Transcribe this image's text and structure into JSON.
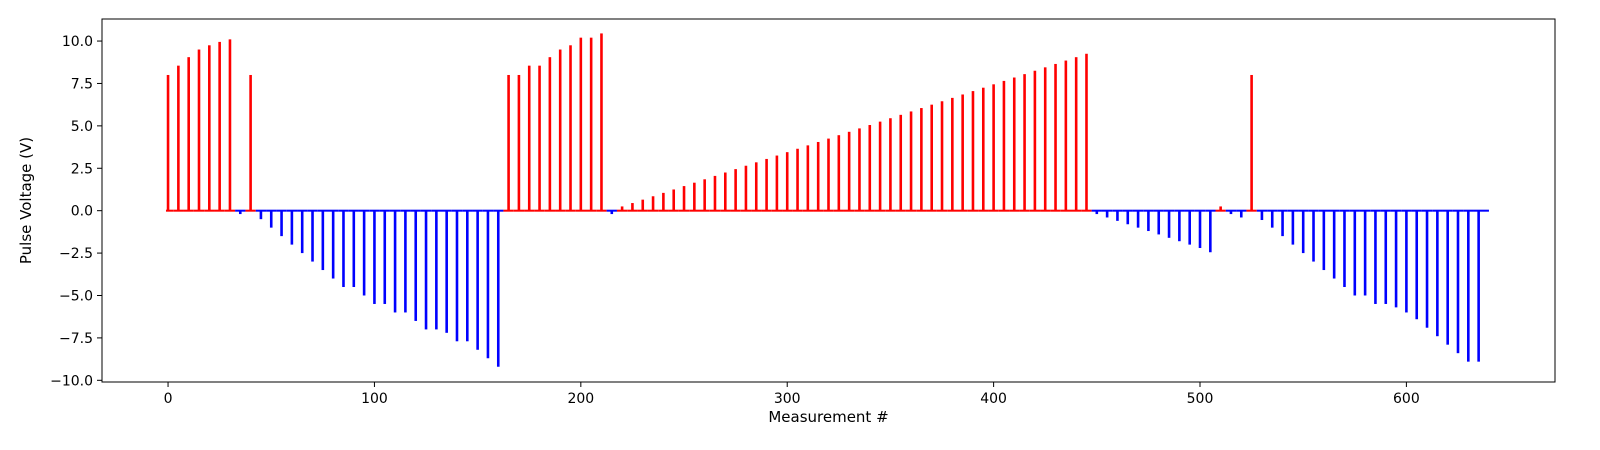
{
  "chart_data": {
    "type": "bar",
    "xlabel": "Measurement #",
    "ylabel": "Pulse Voltage (V)",
    "xlim": [
      -32,
      672
    ],
    "ylim": [
      -10.1,
      11.3
    ],
    "xticks": [
      0,
      100,
      200,
      300,
      400,
      500,
      600
    ],
    "yticks": [
      -10.0,
      -7.5,
      -5.0,
      -2.5,
      0.0,
      2.5,
      5.0,
      7.5,
      10.0
    ],
    "xtick_labels": [
      "0",
      "100",
      "200",
      "300",
      "400",
      "500",
      "600"
    ],
    "ytick_labels": [
      "−10.0",
      "−7.5",
      "−5.0",
      "−2.5",
      "0.0",
      "2.5",
      "5.0",
      "7.5",
      "10.0"
    ],
    "grid": false,
    "colors": {
      "positive": "#ff0000",
      "negative": "#0000ff"
    },
    "series": [
      {
        "values": [
          [
            0,
            8.0
          ],
          [
            5,
            8.55
          ],
          [
            10,
            9.05
          ],
          [
            15,
            9.5
          ],
          [
            20,
            9.75
          ],
          [
            25,
            9.95
          ],
          [
            30,
            10.1
          ],
          [
            35,
            -0.2
          ],
          [
            40,
            8.0
          ],
          [
            45,
            -0.5
          ],
          [
            50,
            -1.0
          ],
          [
            55,
            -1.5
          ],
          [
            60,
            -2.0
          ],
          [
            65,
            -2.5
          ],
          [
            70,
            -3.0
          ],
          [
            75,
            -3.5
          ],
          [
            80,
            -4.0
          ],
          [
            85,
            -4.5
          ],
          [
            90,
            -4.5
          ],
          [
            95,
            -5.0
          ],
          [
            100,
            -5.5
          ],
          [
            105,
            -5.5
          ],
          [
            110,
            -6.0
          ],
          [
            115,
            -6.0
          ],
          [
            120,
            -6.5
          ],
          [
            125,
            -7.0
          ],
          [
            130,
            -7.0
          ],
          [
            135,
            -7.2
          ],
          [
            140,
            -7.7
          ],
          [
            145,
            -7.7
          ],
          [
            150,
            -8.2
          ],
          [
            155,
            -8.7
          ],
          [
            160,
            -9.2
          ],
          [
            165,
            8.0
          ],
          [
            170,
            8.0
          ],
          [
            175,
            8.55
          ],
          [
            180,
            8.55
          ],
          [
            185,
            9.05
          ],
          [
            190,
            9.5
          ],
          [
            195,
            9.75
          ],
          [
            200,
            10.2
          ],
          [
            205,
            10.2
          ],
          [
            210,
            10.45
          ],
          [
            215,
            -0.2
          ],
          [
            220,
            0.25
          ],
          [
            225,
            0.45
          ],
          [
            230,
            0.65
          ],
          [
            235,
            0.85
          ],
          [
            240,
            1.05
          ],
          [
            245,
            1.25
          ],
          [
            250,
            1.45
          ],
          [
            255,
            1.65
          ],
          [
            260,
            1.85
          ],
          [
            265,
            2.05
          ],
          [
            270,
            2.25
          ],
          [
            275,
            2.45
          ],
          [
            280,
            2.65
          ],
          [
            285,
            2.85
          ],
          [
            290,
            3.05
          ],
          [
            295,
            3.25
          ],
          [
            300,
            3.45
          ],
          [
            305,
            3.65
          ],
          [
            310,
            3.85
          ],
          [
            315,
            4.05
          ],
          [
            320,
            4.25
          ],
          [
            325,
            4.45
          ],
          [
            330,
            4.65
          ],
          [
            335,
            4.85
          ],
          [
            340,
            5.05
          ],
          [
            345,
            5.25
          ],
          [
            350,
            5.45
          ],
          [
            355,
            5.65
          ],
          [
            360,
            5.85
          ],
          [
            365,
            6.05
          ],
          [
            370,
            6.25
          ],
          [
            375,
            6.45
          ],
          [
            380,
            6.65
          ],
          [
            385,
            6.85
          ],
          [
            390,
            7.05
          ],
          [
            395,
            7.25
          ],
          [
            400,
            7.45
          ],
          [
            405,
            7.65
          ],
          [
            410,
            7.85
          ],
          [
            415,
            8.05
          ],
          [
            420,
            8.25
          ],
          [
            425,
            8.45
          ],
          [
            430,
            8.65
          ],
          [
            435,
            8.85
          ],
          [
            440,
            9.05
          ],
          [
            445,
            9.25
          ],
          [
            450,
            -0.2
          ],
          [
            455,
            -0.4
          ],
          [
            460,
            -0.6
          ],
          [
            465,
            -0.8
          ],
          [
            470,
            -1.0
          ],
          [
            475,
            -1.2
          ],
          [
            480,
            -1.4
          ],
          [
            485,
            -1.6
          ],
          [
            490,
            -1.8
          ],
          [
            495,
            -2.0
          ],
          [
            500,
            -2.2
          ],
          [
            505,
            -2.45
          ],
          [
            510,
            0.25
          ],
          [
            515,
            -0.2
          ],
          [
            520,
            -0.4
          ],
          [
            525,
            8.0
          ],
          [
            530,
            -0.55
          ],
          [
            535,
            -1.0
          ],
          [
            540,
            -1.5
          ],
          [
            545,
            -2.0
          ],
          [
            550,
            -2.5
          ],
          [
            555,
            -3.0
          ],
          [
            560,
            -3.5
          ],
          [
            565,
            -4.0
          ],
          [
            570,
            -4.5
          ],
          [
            575,
            -5.0
          ],
          [
            580,
            -5.0
          ],
          [
            585,
            -5.5
          ],
          [
            590,
            -5.5
          ],
          [
            595,
            -5.7
          ],
          [
            600,
            -6.0
          ],
          [
            605,
            -6.4
          ],
          [
            610,
            -6.9
          ],
          [
            615,
            -7.4
          ],
          [
            620,
            -7.9
          ],
          [
            625,
            -8.4
          ],
          [
            630,
            -8.9
          ],
          [
            635,
            -8.9
          ]
        ]
      }
    ],
    "baseline": {
      "xmin": -1,
      "xmax": 640,
      "y": 0
    }
  }
}
